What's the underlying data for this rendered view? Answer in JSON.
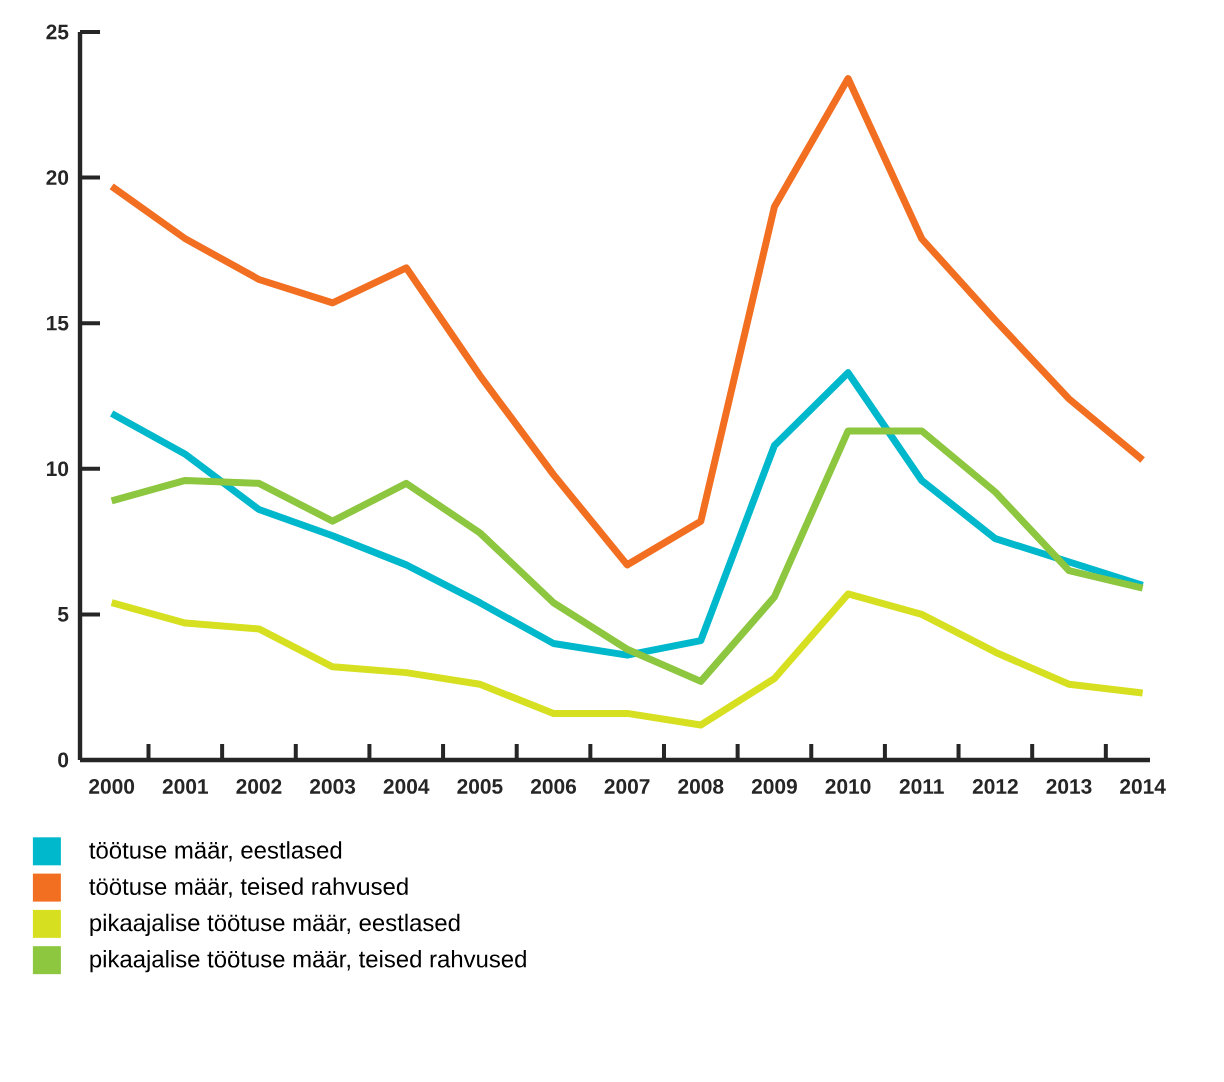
{
  "chart_data": {
    "type": "line",
    "categories": [
      "2000",
      "2001",
      "2002",
      "2003",
      "2004",
      "2005",
      "2006",
      "2007",
      "2008",
      "2009",
      "2010",
      "2011",
      "2012",
      "2013",
      "2014"
    ],
    "series": [
      {
        "name": "töötuse määr, eestlased",
        "color": "#00b8cc",
        "values": [
          11.9,
          10.5,
          8.6,
          7.7,
          6.7,
          5.4,
          4.0,
          3.6,
          4.1,
          10.8,
          13.3,
          9.6,
          7.6,
          6.8,
          6.0
        ]
      },
      {
        "name": "töötuse määr, teised rahvused",
        "color": "#f26f21",
        "values": [
          19.7,
          17.9,
          16.5,
          15.7,
          16.9,
          13.2,
          9.8,
          6.7,
          8.2,
          19.0,
          23.4,
          17.9,
          15.1,
          12.4,
          10.3
        ]
      },
      {
        "name": "pikaajalise töötuse määr, eestlased",
        "color": "#d6e021",
        "values": [
          5.4,
          4.7,
          4.5,
          3.2,
          3.0,
          2.6,
          1.6,
          1.6,
          1.2,
          2.8,
          5.7,
          5.0,
          3.7,
          2.6,
          2.3
        ]
      },
      {
        "name": "pikaajalise töötuse määr, teised rahvused",
        "color": "#8dc63f",
        "values": [
          8.9,
          9.6,
          9.5,
          8.2,
          9.5,
          7.8,
          5.4,
          3.8,
          2.7,
          5.6,
          11.3,
          11.3,
          9.2,
          6.5,
          5.9
        ]
      }
    ],
    "ylim": [
      0,
      25
    ],
    "yticks": [
      0,
      5,
      10,
      15,
      20,
      25
    ],
    "grid": false,
    "legend": "bottom",
    "line_style": "solid"
  }
}
